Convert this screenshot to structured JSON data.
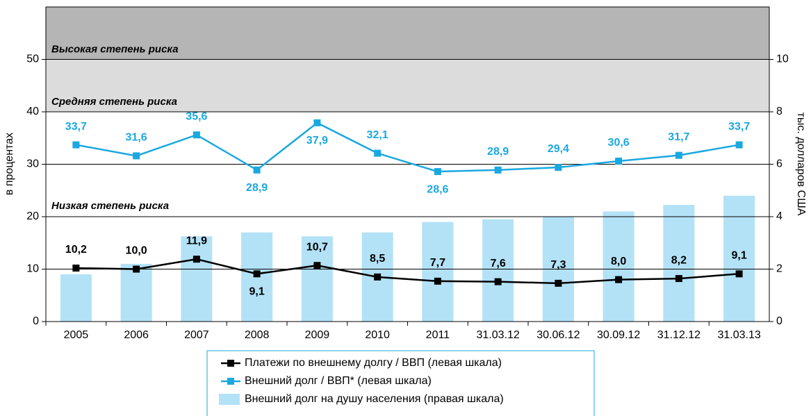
{
  "chart_data": {
    "type": "line",
    "categories": [
      "2005",
      "2006",
      "2007",
      "2008",
      "2009",
      "2010",
      "2011",
      "31.03.12",
      "30.06.12",
      "30.09.12",
      "31.12.12",
      "31.03.13"
    ],
    "ylabel": "в процентах",
    "y2label": "тыс. долларов США",
    "ylim": [
      0,
      60
    ],
    "yticks": [
      0,
      10,
      20,
      30,
      40,
      50
    ],
    "y2lim": [
      0,
      12
    ],
    "y2ticks": [
      0,
      2,
      4,
      6,
      8,
      10
    ],
    "grid": true,
    "bands": [
      {
        "label": "Высокая степень риска",
        "from": 50,
        "to": 60,
        "color": "#b5b5b5"
      },
      {
        "label": "Средняя степень риска",
        "from": 40,
        "to": 50,
        "color": "#dcdcdc"
      },
      {
        "label": "Низкая степень риска",
        "from": 0,
        "to": 40,
        "color": "#ffffff"
      }
    ],
    "series": [
      {
        "name": "Платежи по внешнему долгу / ВВП (левая шкала)",
        "type": "line",
        "color": "#000000",
        "values": [
          10.2,
          10.0,
          11.9,
          9.1,
          10.7,
          8.5,
          7.7,
          7.6,
          7.3,
          8.0,
          8.2,
          9.1
        ],
        "value_labels": [
          "10,2",
          "10,0",
          "11,9",
          "9,1",
          "10,7",
          "8,5",
          "7,7",
          "7,6",
          "7,3",
          "8,0",
          "8,2",
          "9,1"
        ]
      },
      {
        "name": "Внешний долг / ВВП* (левая шкала)",
        "type": "line",
        "color": "#1aa8e0",
        "values": [
          33.7,
          31.6,
          35.6,
          28.9,
          37.9,
          32.1,
          28.6,
          28.9,
          29.4,
          30.6,
          31.7,
          33.7
        ],
        "value_labels": [
          "33,7",
          "31,6",
          "35,6",
          "28,9",
          "37,9",
          "32,1",
          "28,6",
          "28,9",
          "29,4",
          "30,6",
          "31,7",
          "33,7"
        ]
      },
      {
        "name": "Внешний долг на душу населения (правая шкала)",
        "type": "bar",
        "color": "#b3e2f7",
        "axis": "y2",
        "values": [
          1.8,
          2.2,
          3.25,
          3.4,
          3.25,
          3.4,
          3.8,
          3.9,
          4.0,
          4.2,
          4.45,
          4.8
        ]
      }
    ]
  }
}
